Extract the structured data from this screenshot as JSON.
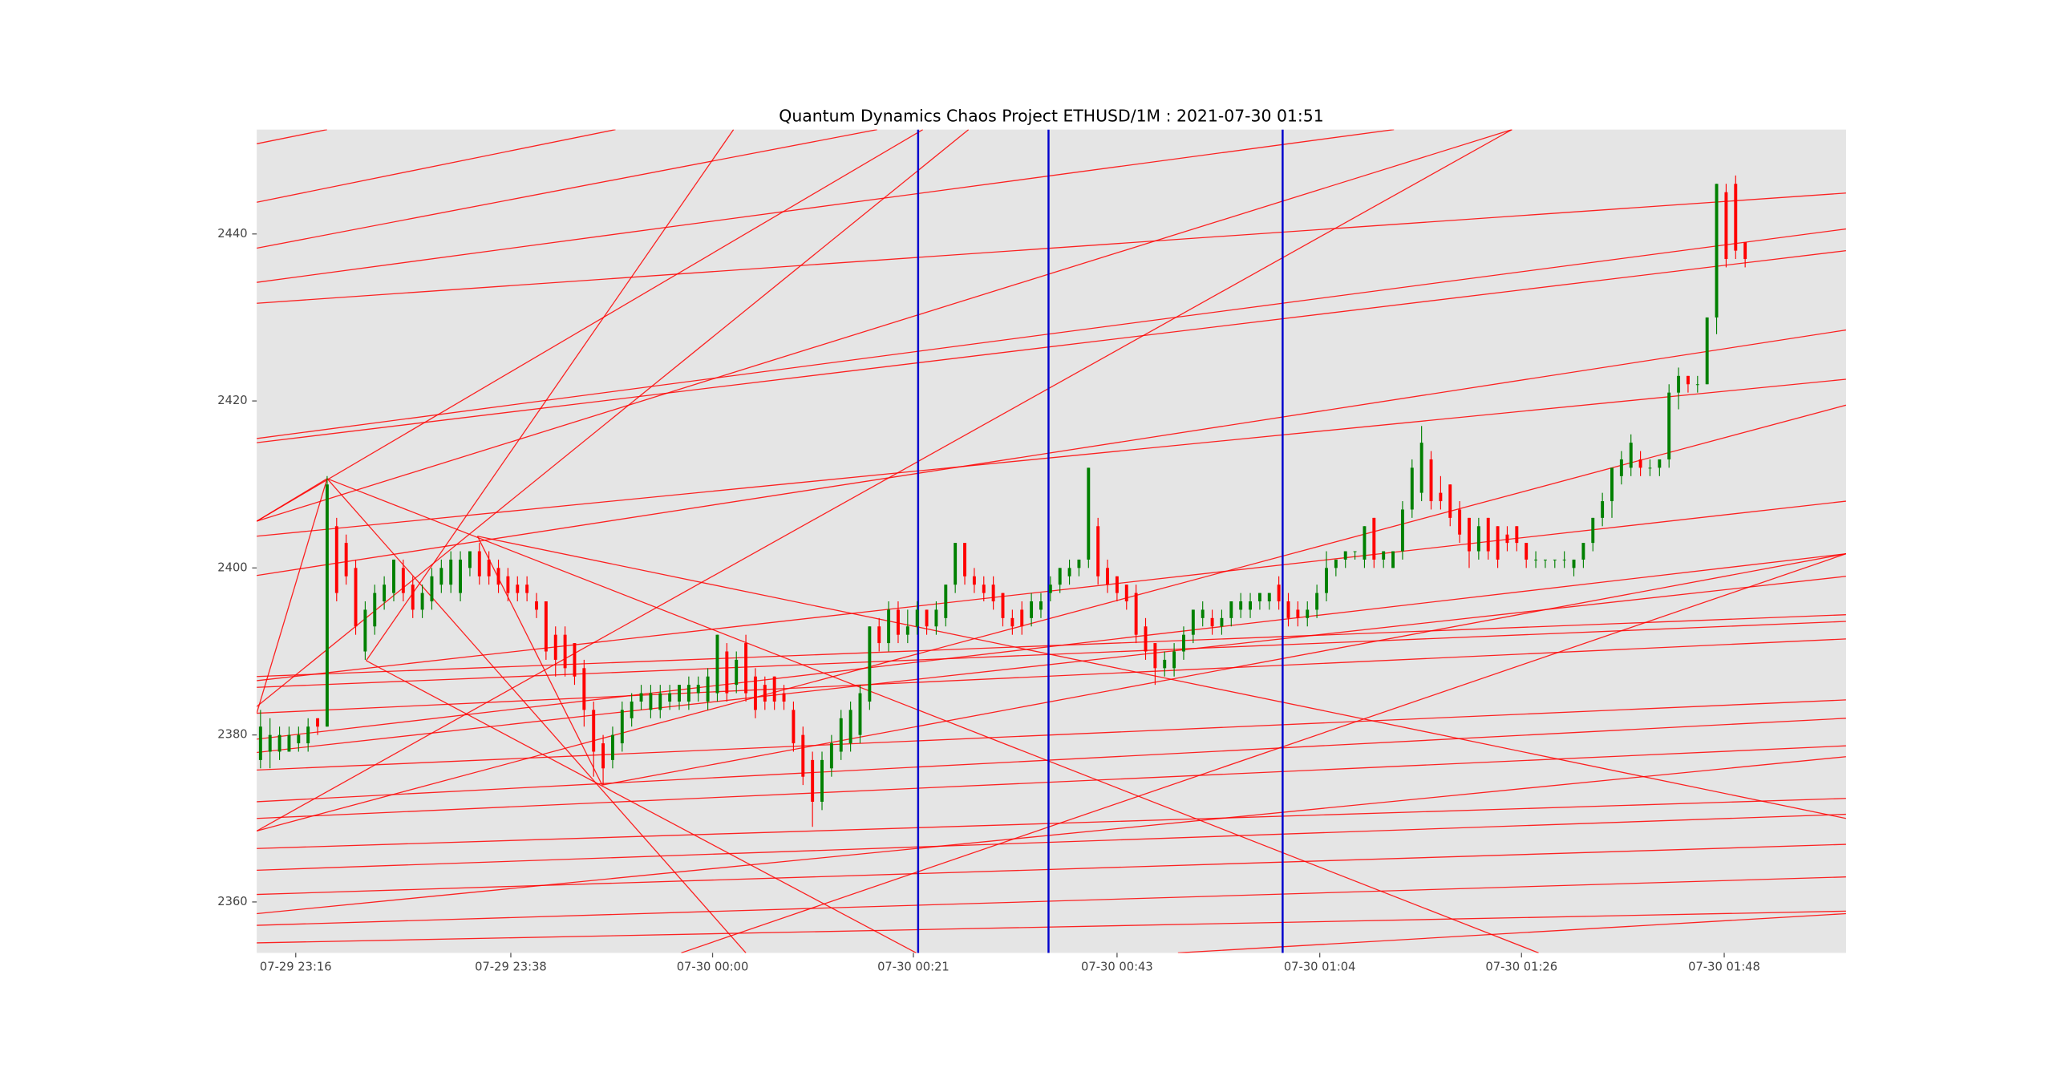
{
  "chart_data": {
    "type": "candlestick",
    "title": "Quantum Dynamics Chaos Project ETHUSD/1M : 2021-07-30 01:51",
    "x": [
      0,
      1,
      2,
      3,
      4,
      5,
      6,
      7,
      8,
      9,
      10,
      11,
      12,
      13,
      14,
      15,
      16,
      17,
      18,
      19,
      20,
      21,
      22,
      23,
      24,
      25,
      26,
      27,
      28,
      29,
      30,
      31,
      32,
      33,
      34,
      35,
      36,
      37,
      38,
      39,
      40,
      41,
      42,
      43,
      44,
      45,
      46,
      47,
      48,
      49,
      50,
      51,
      52,
      53,
      54,
      55,
      56,
      57,
      58,
      59,
      60,
      61,
      62,
      63,
      64,
      65,
      66,
      67,
      68,
      69,
      70,
      71,
      72,
      73,
      74,
      75,
      76,
      77,
      78,
      79,
      80,
      81,
      82,
      83,
      84,
      85,
      86,
      87,
      88,
      89,
      90,
      91,
      92,
      93,
      94,
      95,
      96,
      97,
      98,
      99,
      100,
      101,
      102,
      103,
      104,
      105,
      106,
      107,
      108,
      109,
      110,
      111,
      112,
      113,
      114,
      115,
      116,
      117,
      118,
      119,
      120,
      121,
      122,
      123,
      124,
      125,
      126,
      127,
      128,
      129,
      130,
      131,
      132,
      133,
      134,
      135,
      136,
      137,
      138,
      139,
      140,
      141,
      142,
      143,
      144,
      145,
      146,
      147,
      148,
      149,
      150,
      151,
      152,
      153,
      154,
      155,
      156
    ],
    "open": [
      2377,
      2378,
      2378,
      2378,
      2379,
      2379,
      2382,
      2381,
      2405,
      2403,
      2400,
      2390,
      2393,
      2396,
      2397,
      2400,
      2398,
      2395,
      2396,
      2398,
      2398,
      2397,
      2400,
      2402,
      2401,
      2400,
      2399,
      2398,
      2398,
      2396,
      2396,
      2392,
      2392,
      2391,
      2388,
      2383,
      2379,
      2377,
      2379,
      2382,
      2384,
      2383,
      2383,
      2384,
      2384,
      2384,
      2385,
      2384,
      2385,
      2390,
      2386,
      2391,
      2387,
      2386,
      2387,
      2385,
      2383,
      2380,
      2377,
      2372,
      2376,
      2378,
      2379,
      2380,
      2384,
      2393,
      2391,
      2395,
      2392,
      2393,
      2395,
      2393,
      2394,
      2398,
      2403,
      2399,
      2398,
      2398,
      2397,
      2394,
      2395,
      2394,
      2395,
      2397,
      2398,
      2399,
      2400,
      2401,
      2405,
      2400,
      2399,
      2398,
      2397,
      2393,
      2391,
      2388,
      2388,
      2390,
      2392,
      2394,
      2394,
      2393,
      2394,
      2395,
      2395,
      2396,
      2396,
      2398,
      2396,
      2395,
      2394,
      2395,
      2397,
      2400,
      2401,
      2402,
      2401,
      2406,
      2401,
      2400,
      2402,
      2407,
      2409,
      2413,
      2409,
      2410,
      2407,
      2406,
      2402,
      2406,
      2405,
      2404,
      2405,
      2403,
      2401,
      2401,
      2401,
      2401,
      2400,
      2401,
      2403,
      2406,
      2408,
      2411,
      2412,
      2413,
      2412,
      2412,
      2413,
      2421,
      2423,
      2422,
      2422,
      2430,
      2445,
      2446,
      2439
    ],
    "high": [
      2383,
      2382,
      2381,
      2381,
      2381,
      2382,
      2382,
      2411,
      2406,
      2404,
      2401,
      2396,
      2398,
      2399,
      2401,
      2401,
      2399,
      2398,
      2400,
      2401,
      2402,
      2402,
      2402,
      2403,
      2402,
      2401,
      2400,
      2399,
      2399,
      2397,
      2396,
      2393,
      2393,
      2391,
      2389,
      2384,
      2380,
      2381,
      2384,
      2385,
      2386,
      2386,
      2386,
      2386,
      2386,
      2387,
      2387,
      2388,
      2392,
      2391,
      2390,
      2392,
      2388,
      2387,
      2387,
      2386,
      2384,
      2381,
      2378,
      2378,
      2380,
      2383,
      2384,
      2386,
      2393,
      2394,
      2396,
      2396,
      2395,
      2396,
      2395,
      2396,
      2398,
      2403,
      2403,
      2400,
      2399,
      2399,
      2397,
      2395,
      2396,
      2397,
      2397,
      2399,
      2400,
      2401,
      2401,
      2412,
      2406,
      2401,
      2399,
      2398,
      2398,
      2394,
      2391,
      2390,
      2391,
      2393,
      2395,
      2396,
      2395,
      2395,
      2396,
      2397,
      2397,
      2397,
      2397,
      2399,
      2397,
      2396,
      2396,
      2398,
      2402,
      2401,
      2402,
      2402,
      2405,
      2406,
      2402,
      2402,
      2408,
      2413,
      2417,
      2414,
      2411,
      2410,
      2408,
      2406,
      2406,
      2406,
      2405,
      2405,
      2405,
      2403,
      2402,
      2401,
      2401,
      2402,
      2401,
      2403,
      2406,
      2409,
      2412,
      2414,
      2416,
      2414,
      2413,
      2413,
      2422,
      2424,
      2423,
      2423,
      2430,
      2446,
      2446,
      2447,
      2439
    ],
    "low": [
      2376,
      2376,
      2377,
      2378,
      2378,
      2378,
      2380,
      2381,
      2396,
      2398,
      2392,
      2389,
      2392,
      2395,
      2396,
      2396,
      2394,
      2394,
      2395,
      2397,
      2397,
      2396,
      2399,
      2398,
      2398,
      2397,
      2396,
      2396,
      2396,
      2394,
      2389,
      2387,
      2387,
      2386,
      2381,
      2375,
      2374,
      2376,
      2378,
      2381,
      2383,
      2382,
      2382,
      2383,
      2383,
      2383,
      2384,
      2383,
      2384,
      2384,
      2385,
      2384,
      2382,
      2383,
      2383,
      2383,
      2378,
      2374,
      2369,
      2371,
      2375,
      2377,
      2378,
      2379,
      2383,
      2390,
      2390,
      2391,
      2391,
      2392,
      2392,
      2392,
      2393,
      2397,
      2398,
      2397,
      2396,
      2395,
      2393,
      2392,
      2392,
      2393,
      2394,
      2396,
      2397,
      2398,
      2399,
      2400,
      2398,
      2397,
      2396,
      2395,
      2391,
      2389,
      2386,
      2387,
      2387,
      2389,
      2391,
      2393,
      2392,
      2392,
      2393,
      2394,
      2394,
      2395,
      2395,
      2395,
      2393,
      2393,
      2393,
      2394,
      2396,
      2399,
      2400,
      2401,
      2400,
      2400,
      2400,
      2400,
      2401,
      2406,
      2408,
      2407,
      2407,
      2405,
      2403,
      2400,
      2401,
      2401,
      2400,
      2402,
      2402,
      2400,
      2400,
      2400,
      2400,
      2400,
      2399,
      2400,
      2402,
      2405,
      2406,
      2410,
      2411,
      2411,
      2411,
      2411,
      2412,
      2419,
      2421,
      2421,
      2422,
      2428,
      2436,
      2437,
      2436
    ],
    "close": [
      2381,
      2380,
      2380,
      2380,
      2380,
      2381,
      2381,
      2410,
      2397,
      2399,
      2393,
      2395,
      2397,
      2398,
      2401,
      2397,
      2395,
      2397,
      2399,
      2400,
      2401,
      2401,
      2402,
      2399,
      2399,
      2398,
      2397,
      2397,
      2397,
      2395,
      2390,
      2389,
      2388,
      2387,
      2383,
      2378,
      2376,
      2380,
      2383,
      2384,
      2385,
      2385,
      2385,
      2385,
      2386,
      2386,
      2386,
      2387,
      2392,
      2385,
      2389,
      2385,
      2383,
      2384,
      2384,
      2384,
      2379,
      2375,
      2372,
      2377,
      2379,
      2382,
      2383,
      2385,
      2393,
      2391,
      2395,
      2392,
      2393,
      2395,
      2393,
      2395,
      2398,
      2403,
      2399,
      2398,
      2397,
      2396,
      2394,
      2393,
      2393,
      2396,
      2396,
      2398,
      2400,
      2400,
      2401,
      2412,
      2399,
      2398,
      2397,
      2396,
      2392,
      2390,
      2388,
      2389,
      2390,
      2392,
      2395,
      2395,
      2393,
      2394,
      2396,
      2396,
      2396,
      2397,
      2397,
      2396,
      2394,
      2394,
      2395,
      2397,
      2400,
      2401,
      2402,
      2402,
      2405,
      2401,
      2402,
      2402,
      2407,
      2412,
      2415,
      2408,
      2408,
      2406,
      2404,
      2402,
      2405,
      2402,
      2401,
      2403,
      2403,
      2401,
      2401,
      2401,
      2401,
      2401,
      2401,
      2403,
      2406,
      2408,
      2412,
      2413,
      2415,
      2412,
      2412,
      2413,
      2421,
      2423,
      2422,
      2422,
      2430,
      2446,
      2437,
      2438,
      2437
    ],
    "up_color": "#008000",
    "down_color": "#ff0000",
    "xlim": [
      -0.4,
      166.6
    ],
    "ylim": [
      2353.9,
      2452.5
    ],
    "xticks": [
      {
        "value": 3.7,
        "label": "07-29 23:16"
      },
      {
        "value": 26.3,
        "label": "07-29 23:38"
      },
      {
        "value": 47.5,
        "label": "07-30 00:00"
      },
      {
        "value": 68.6,
        "label": "07-30 00:21"
      },
      {
        "value": 90,
        "label": "07-30 00:43"
      },
      {
        "value": 111.3,
        "label": "07-30 01:04"
      },
      {
        "value": 132.5,
        "label": "07-30 01:26"
      },
      {
        "value": 153.8,
        "label": "07-30 01:48"
      }
    ],
    "yticks": [
      2360,
      2380,
      2400,
      2420,
      2440
    ],
    "grid": false,
    "background": "#e5e5e5",
    "trend_line_color": "#ff0000",
    "trend_lines": [
      [
        -0.4,
        2450.8,
        7.0,
        2452.5
      ],
      [
        -0.4,
        2443.8,
        37.3,
        2452.5
      ],
      [
        -0.4,
        2438.3,
        64.8,
        2452.5
      ],
      [
        -0.4,
        2434.2,
        119.1,
        2452.5
      ],
      [
        -0.4,
        2431.7,
        166.6,
        2444.9
      ],
      [
        -0.4,
        2415.5,
        166.6,
        2440.6
      ],
      [
        -0.4,
        2415.0,
        166.6,
        2438.0
      ],
      [
        -0.4,
        2405.6,
        69.6,
        2452.5
      ],
      [
        -0.4,
        2405.6,
        131.5,
        2452.5
      ],
      [
        -0.4,
        2383.4,
        74.4,
        2452.5
      ],
      [
        -0.4,
        2368.5,
        131.5,
        2452.5
      ],
      [
        -0.4,
        2368.5,
        166.6,
        2419.5
      ],
      [
        -0.4,
        2399.1,
        166.6,
        2428.5
      ],
      [
        -0.4,
        2403.8,
        166.6,
        2422.6
      ],
      [
        -0.4,
        2386.5,
        166.6,
        2408.0
      ],
      [
        -0.4,
        2379.5,
        166.6,
        2401.7
      ],
      [
        -0.4,
        2377.9,
        166.6,
        2399.0
      ],
      [
        -0.4,
        2387.0,
        166.6,
        2394.4
      ],
      [
        -0.4,
        2385.7,
        166.6,
        2393.6
      ],
      [
        -0.4,
        2382.6,
        166.6,
        2391.5
      ],
      [
        -0.4,
        2375.8,
        166.6,
        2384.2
      ],
      [
        -0.4,
        2372.0,
        166.6,
        2382.0
      ],
      [
        -0.4,
        2370.0,
        166.6,
        2378.7
      ],
      [
        -0.4,
        2366.4,
        166.6,
        2372.4
      ],
      [
        -0.4,
        2363.8,
        166.6,
        2370.5
      ],
      [
        -0.4,
        2360.9,
        166.6,
        2366.9
      ],
      [
        -0.4,
        2358.6,
        166.6,
        2377.4
      ],
      [
        -0.4,
        2357.2,
        166.6,
        2363.0
      ],
      [
        -0.4,
        2355.1,
        166.6,
        2358.9
      ],
      [
        44.2,
        2353.9,
        166.6,
        2401.7
      ],
      [
        96.4,
        2353.9,
        166.6,
        2358.6
      ],
      [
        7.0,
        2410.7,
        134.3,
        2353.9
      ],
      [
        7.0,
        2410.7,
        51.0,
        2353.9
      ],
      [
        11.1,
        2388.9,
        68.9,
        2353.9
      ],
      [
        22.8,
        2403.8,
        166.6,
        2370.0
      ],
      [
        -0.4,
        2405.6,
        7.0,
        2410.7
      ],
      [
        -0.4,
        2382.6,
        7.0,
        2410.7
      ],
      [
        11.1,
        2388.9,
        49.7,
        2452.5
      ],
      [
        35.9,
        2374.0,
        166.6,
        2401.7
      ],
      [
        35.9,
        2374.0,
        22.8,
        2403.8
      ]
    ],
    "vline_color": "#0000cc",
    "vlines": [
      69.1,
      82.8,
      107.4
    ]
  }
}
